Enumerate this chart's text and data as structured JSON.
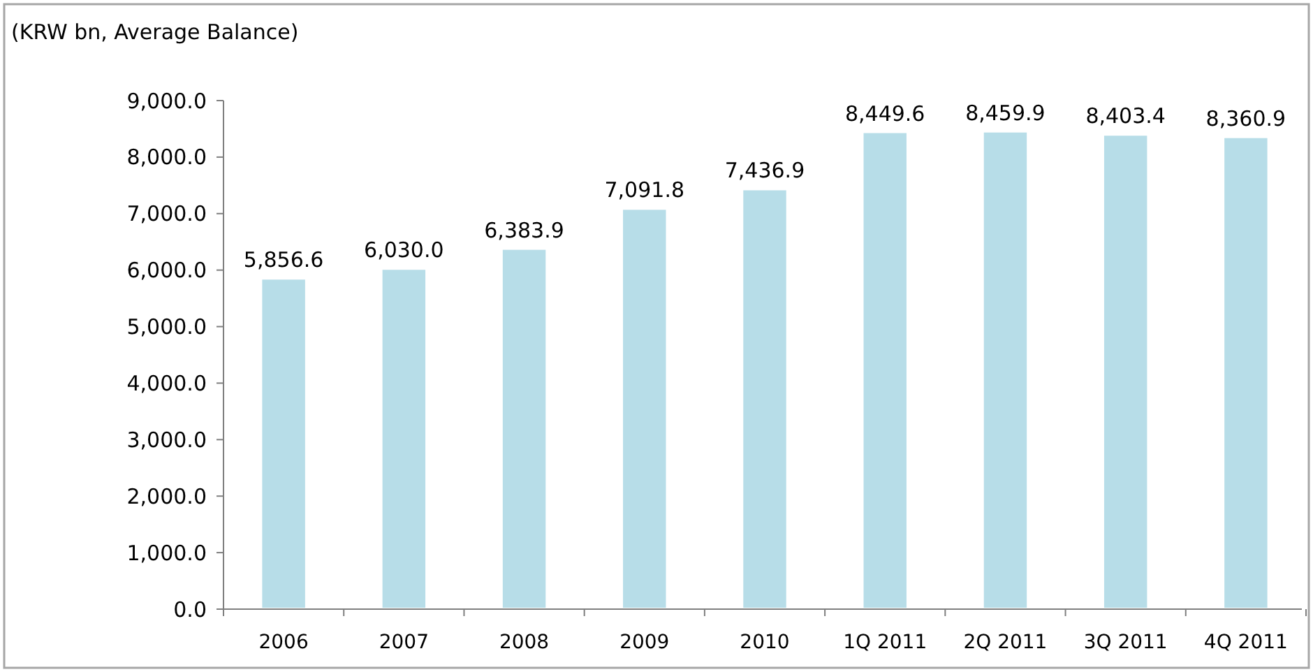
{
  "chart_data": {
    "type": "bar",
    "title": "(KRW bn, Average Balance)",
    "categories": [
      "2006",
      "2007",
      "2008",
      "2009",
      "2010",
      "1Q 2011",
      "2Q 2011",
      "3Q 2011",
      "4Q 2011"
    ],
    "values": [
      5856.6,
      6030.0,
      6383.9,
      7091.8,
      7436.9,
      8449.6,
      8459.9,
      8403.4,
      8360.9
    ],
    "color": "#b7dde8",
    "ylim": [
      0,
      9000
    ],
    "yticks": [
      {
        "value": 0,
        "label": "0.0"
      },
      {
        "value": 1000,
        "label": "1,000.0"
      },
      {
        "value": 2000,
        "label": "2,000.0"
      },
      {
        "value": 3000,
        "label": "3,000.0"
      },
      {
        "value": 4000,
        "label": "4,000.0"
      },
      {
        "value": 5000,
        "label": "5,000.0"
      },
      {
        "value": 6000,
        "label": "6,000.0"
      },
      {
        "value": 7000,
        "label": "7,000.0"
      },
      {
        "value": 8000,
        "label": "8,000.0"
      },
      {
        "value": 9000,
        "label": "9,000.0"
      }
    ],
    "value_labels": [
      "5,856.6",
      "6,030.0",
      "6,383.9",
      "7,091.8",
      "7,436.9",
      "8,449.6",
      "8,459.9",
      "8,403.4",
      "8,360.9"
    ]
  }
}
